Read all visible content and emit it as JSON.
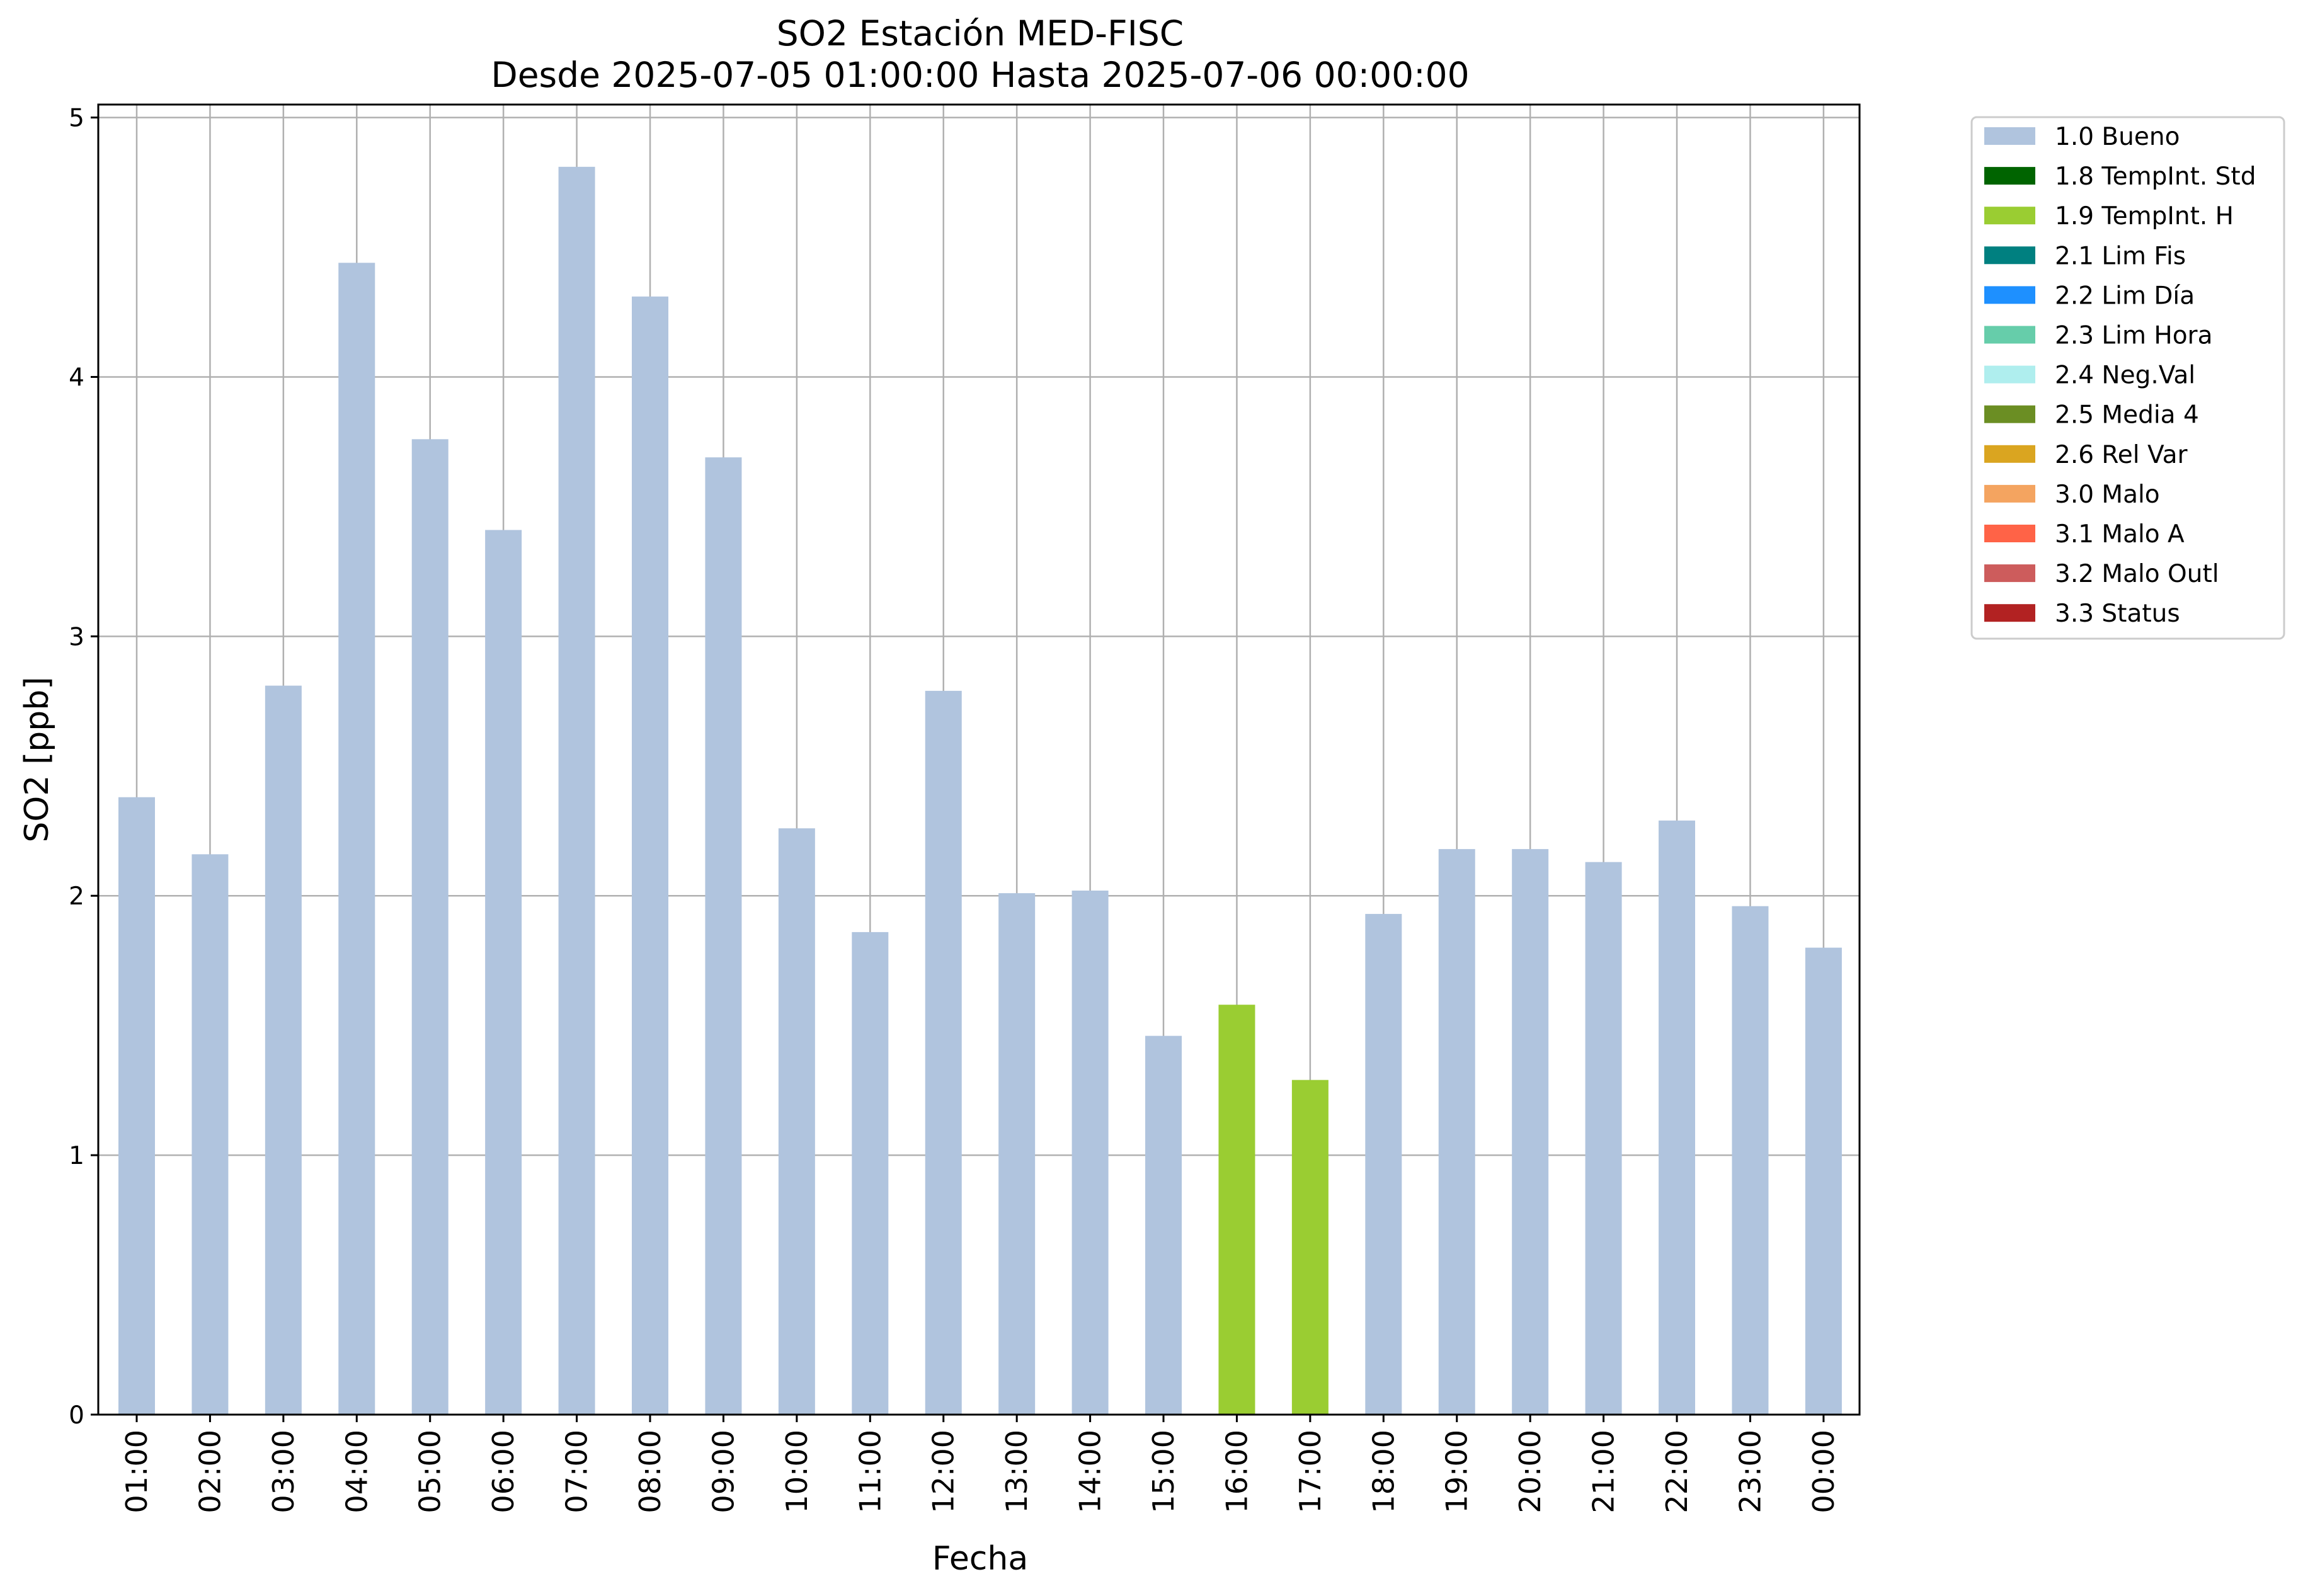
{
  "chart_data": {
    "type": "bar",
    "title": "SO2 Estación MED-FISC",
    "subtitle": "Desde 2025-07-05 01:00:00 Hasta 2025-07-06 00:00:00",
    "xlabel": "Fecha",
    "ylabel": "SO2 [ppb]",
    "ylim": [
      0,
      5.05
    ],
    "yticks": [
      "0",
      "1",
      "2",
      "3",
      "4",
      "5"
    ],
    "grid": true,
    "legend_position": "outside-right",
    "categories": [
      "01:00",
      "02:00",
      "03:00",
      "04:00",
      "05:00",
      "06:00",
      "07:00",
      "08:00",
      "09:00",
      "10:00",
      "11:00",
      "12:00",
      "13:00",
      "14:00",
      "15:00",
      "16:00",
      "17:00",
      "18:00",
      "19:00",
      "20:00",
      "21:00",
      "22:00",
      "23:00",
      "00:00"
    ],
    "values": [
      2.38,
      2.16,
      2.81,
      4.44,
      3.76,
      3.41,
      4.81,
      4.31,
      3.69,
      2.26,
      1.86,
      2.79,
      2.01,
      2.02,
      1.46,
      1.58,
      1.29,
      1.93,
      2.18,
      2.18,
      2.13,
      2.29,
      1.96,
      1.8
    ],
    "flags": [
      "1.0",
      "1.0",
      "1.0",
      "1.0",
      "1.0",
      "1.0",
      "1.0",
      "1.0",
      "1.0",
      "1.0",
      "1.0",
      "1.0",
      "1.0",
      "1.0",
      "1.0",
      "1.9",
      "1.9",
      "1.0",
      "1.0",
      "1.0",
      "1.0",
      "1.0",
      "1.0",
      "1.0"
    ],
    "legend": [
      {
        "code": "1.0",
        "label": "1.0 Bueno",
        "color": "#b0c4de"
      },
      {
        "code": "1.8",
        "label": "1.8 TempInt. Std",
        "color": "#006400"
      },
      {
        "code": "1.9",
        "label": "1.9 TempInt. H",
        "color": "#9acd32"
      },
      {
        "code": "2.1",
        "label": "2.1 Lim Fis",
        "color": "#008080"
      },
      {
        "code": "2.2",
        "label": "2.2 Lim Día",
        "color": "#1e90ff"
      },
      {
        "code": "2.3",
        "label": "2.3 Lim Hora",
        "color": "#66cdaa"
      },
      {
        "code": "2.4",
        "label": "2.4 Neg.Val",
        "color": "#afeeee"
      },
      {
        "code": "2.5",
        "label": "2.5 Media 4",
        "color": "#6b8e23"
      },
      {
        "code": "2.6",
        "label": "2.6 Rel Var",
        "color": "#daa520"
      },
      {
        "code": "3.0",
        "label": "3.0 Malo",
        "color": "#f4a460"
      },
      {
        "code": "3.1",
        "label": "3.1 Malo A",
        "color": "#ff6347"
      },
      {
        "code": "3.2",
        "label": "3.2 Malo Outl",
        "color": "#cd5c5c"
      },
      {
        "code": "3.3",
        "label": "3.3 Status",
        "color": "#b22222"
      }
    ]
  }
}
